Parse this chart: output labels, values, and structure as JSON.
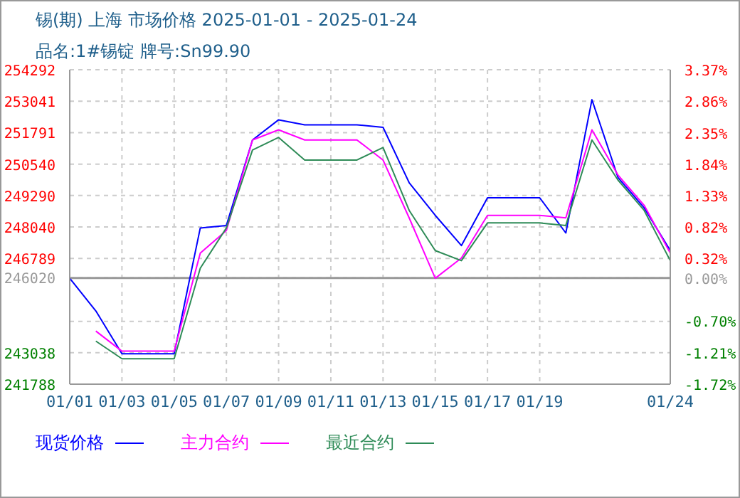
{
  "chart_data": {
    "type": "line",
    "title": "锡(期) 上海 市场价格 2025-01-01 - 2025-01-24",
    "subtitle": "品名:1#锡锭 牌号:Sn99.90",
    "categories": [
      "01/01",
      null,
      "01/03",
      null,
      "01/05",
      null,
      "01/07",
      null,
      "01/09",
      null,
      "01/11",
      null,
      "01/13",
      null,
      "01/15",
      null,
      "01/17",
      null,
      "01/19",
      null,
      null,
      null,
      null,
      "01/24"
    ],
    "series": [
      {
        "name": "现货价格",
        "color": "#0000ff",
        "values": [
          246000,
          244700,
          243000,
          243000,
          243000,
          248000,
          248100,
          251500,
          252300,
          252100,
          252100,
          252100,
          252000,
          249800,
          248500,
          247300,
          249200,
          249200,
          249200,
          247800,
          253100,
          250000,
          248800,
          247100
        ]
      },
      {
        "name": "主力合约",
        "color": "#ff00ff",
        "values": [
          null,
          243900,
          243100,
          243100,
          243100,
          247000,
          247900,
          251500,
          251900,
          251500,
          251500,
          251500,
          250700,
          248400,
          246000,
          246800,
          248500,
          248500,
          248500,
          248400,
          251900,
          250100,
          248900,
          247000
        ]
      },
      {
        "name": "最近合约",
        "color": "#2e8b57",
        "values": [
          null,
          243500,
          242800,
          242800,
          242800,
          246400,
          248000,
          251100,
          251600,
          250700,
          250700,
          250700,
          251200,
          248700,
          247100,
          246700,
          248200,
          248200,
          248200,
          248100,
          251500,
          249900,
          248700,
          246700
        ]
      }
    ],
    "ylim": [
      241788,
      254292
    ],
    "yticks": [
      241788,
      243038,
      {
        "value": 244288,
        "label": null
      },
      246020,
      246789,
      248040,
      249290,
      250540,
      251791,
      253041,
      254292
    ],
    "y2lim": [
      -1.72,
      3.37
    ],
    "y2ticks": [
      {
        "value": -1.72,
        "label": "-1.72%"
      },
      {
        "value": -1.21,
        "label": "-1.21%"
      },
      {
        "value": -0.7,
        "label": "-0.70%"
      },
      {
        "value": 0,
        "label": "0.00%"
      },
      {
        "value": 0.32,
        "label": "0.32%"
      },
      {
        "value": 0.82,
        "label": "0.82%"
      },
      {
        "value": 1.33,
        "label": "1.33%"
      },
      {
        "value": 1.84,
        "label": "1.84%"
      },
      {
        "value": 2.35,
        "label": "2.35%"
      },
      {
        "value": 2.86,
        "label": "2.86%"
      },
      {
        "value": 3.37,
        "label": "3.37%"
      }
    ],
    "ref_lines": [
      {
        "axis": "y2",
        "value": 0,
        "color": "#999999"
      }
    ],
    "grid": true,
    "legend": "bottom left",
    "marker": "none",
    "line_style": "solid"
  }
}
